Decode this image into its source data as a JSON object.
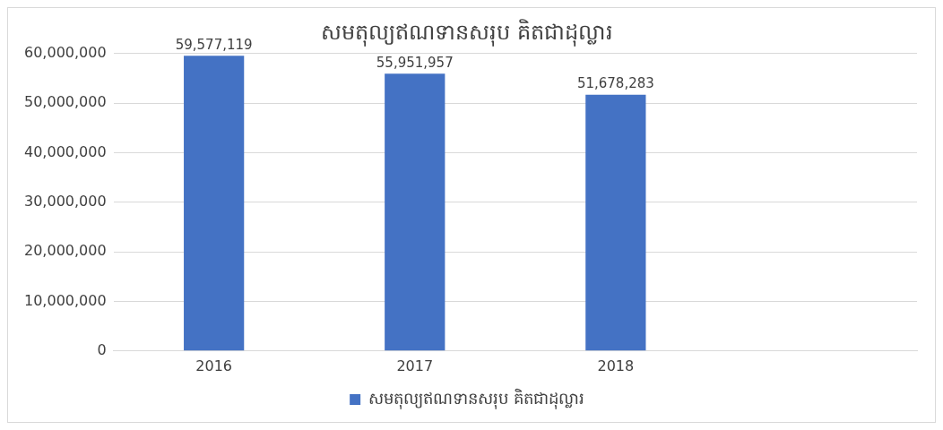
{
  "chart_data": {
    "type": "bar",
    "title": "សមតុល្យឥណទានសរុប គិតជាដុល្លារ",
    "categories": [
      "2016",
      "2017",
      "2018",
      null
    ],
    "series": [
      {
        "name": "សមតុល្យឥណទានសរុប គិតជាដុល្លារ",
        "color": "#4472c4",
        "values": [
          59577119,
          55951957,
          51678283,
          null
        ],
        "value_labels": [
          "59,577,119",
          "55,951,957",
          "51,678,283",
          null
        ]
      }
    ],
    "ylim": [
      0,
      60000000
    ],
    "yticks": [
      0,
      {
        "value": 10000000,
        "label": "10,000,000"
      },
      {
        "value": 20000000,
        "label": "20,000,000"
      },
      {
        "value": 30000000,
        "label": "30,000,000"
      },
      {
        "value": 40000000,
        "label": "40,000,000"
      },
      {
        "value": 50000000,
        "label": "50,000,000"
      },
      {
        "value": 60000000,
        "label": "60,000,000"
      }
    ],
    "grid": "y",
    "legend": "bottom"
  }
}
